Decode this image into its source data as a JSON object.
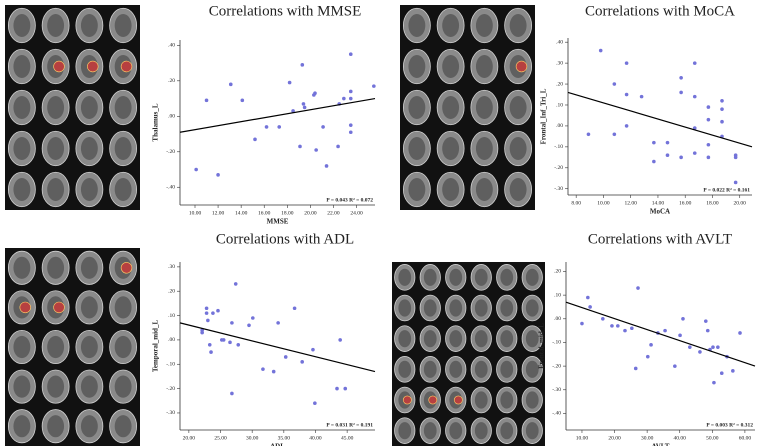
{
  "chart_data": [
    {
      "type": "scatter",
      "title": "Correlations with MMSE",
      "x_label": "MMSE",
      "y_label": "Thalamus_L",
      "annotation": "P = 0.043   R² = 0.072",
      "color": "#7373d9",
      "x": [
        10.1,
        11.0,
        12.0,
        13.1,
        14.1,
        15.2,
        16.2,
        17.3,
        18.5,
        18.2,
        19.1,
        19.3,
        19.4,
        19.5,
        20.3,
        20.4,
        20.5,
        21.1,
        21.4,
        22.4,
        22.5,
        22.9,
        23.5,
        23.5,
        23.5,
        23.5,
        23.5,
        25.5
      ],
      "values": [
        -0.3,
        0.09,
        -0.33,
        0.18,
        0.09,
        -0.13,
        -0.06,
        -0.06,
        0.03,
        0.19,
        -0.17,
        0.29,
        0.07,
        0.05,
        0.12,
        0.13,
        -0.19,
        -0.06,
        -0.28,
        -0.17,
        0.07,
        0.1,
        0.1,
        0.14,
        -0.09,
        -0.05,
        0.35,
        0.17
      ],
      "fit": {
        "x": [
          8.7,
          25.6
        ],
        "y": [
          -0.09,
          0.1
        ]
      },
      "xlim": [
        8.7,
        25.6
      ],
      "ylim": [
        -0.5,
        0.43
      ],
      "xticks": [
        {
          "value": 10,
          "label": "10.00"
        },
        {
          "value": 12,
          "label": "12.00"
        },
        {
          "value": 14,
          "label": "14.00"
        },
        {
          "value": 16,
          "label": "16.00"
        },
        {
          "value": 18,
          "label": "18.00"
        },
        {
          "value": 20,
          "label": "20.00"
        },
        {
          "value": 22,
          "label": "22.00"
        },
        {
          "value": 24,
          "label": "24.00"
        }
      ],
      "yticks": [
        {
          "value": 0.4,
          "label": ".40"
        },
        {
          "value": 0.2,
          "label": ".20"
        },
        {
          "value": 0,
          "label": ".00"
        },
        {
          "value": -0.2,
          "label": "-.20"
        },
        {
          "value": -0.4,
          "label": "-.40"
        }
      ]
    },
    {
      "type": "scatter",
      "title": "Correlations with MoCA",
      "x_label": "MoCA",
      "y_label": "Frontal_Inf_Tri_L",
      "annotation": "P = 0.022   R² = 0.161",
      "color": "#7373d9",
      "x": [
        8.9,
        9.8,
        10.8,
        10.8,
        11.7,
        11.7,
        11.7,
        12.8,
        13.7,
        13.7,
        14.7,
        14.7,
        15.7,
        15.7,
        15.7,
        16.7,
        16.7,
        16.7,
        16.7,
        17.7,
        17.7,
        17.7,
        17.7,
        18.7,
        18.7,
        18.7,
        18.7,
        19.7,
        19.7,
        19.7
      ],
      "values": [
        -0.04,
        0.36,
        0.2,
        -0.04,
        0.3,
        0.15,
        0.0,
        0.14,
        -0.08,
        -0.17,
        -0.08,
        -0.14,
        0.23,
        0.16,
        -0.15,
        0.3,
        0.14,
        -0.01,
        -0.13,
        0.09,
        0.03,
        -0.09,
        -0.15,
        0.12,
        0.08,
        0.02,
        -0.05,
        -0.14,
        -0.15,
        -0.27
      ],
      "fit": {
        "x": [
          7.4,
          20.9
        ],
        "y": [
          0.16,
          -0.1
        ]
      },
      "xlim": [
        7.4,
        20.9
      ],
      "ylim": [
        -0.33,
        0.42
      ],
      "xticks": [
        {
          "value": 8,
          "label": "8.00"
        },
        {
          "value": 10,
          "label": "10.00"
        },
        {
          "value": 12,
          "label": "12.00"
        },
        {
          "value": 14,
          "label": "14.00"
        },
        {
          "value": 16,
          "label": "16.00"
        },
        {
          "value": 18,
          "label": "18.00"
        },
        {
          "value": 20,
          "label": "20.00"
        }
      ],
      "yticks": [
        {
          "value": 0.4,
          "label": ".40"
        },
        {
          "value": 0.3,
          "label": ".30"
        },
        {
          "value": 0.2,
          "label": ".20"
        },
        {
          "value": 0.1,
          "label": ".10"
        },
        {
          "value": 0,
          "label": ".00"
        },
        {
          "value": -0.1,
          "label": "-.10"
        },
        {
          "value": -0.2,
          "label": "-.20"
        },
        {
          "value": -0.3,
          "label": "-.30"
        }
      ]
    },
    {
      "type": "scatter",
      "title": "Correlations with ADL",
      "x_label": "ADL",
      "y_label": "Temporal_mid_L",
      "annotation": "P = 0.031   R² = 0.191",
      "color": "#7373d9",
      "x": [
        22.1,
        22.1,
        22.8,
        22.8,
        23.0,
        23.3,
        23.5,
        23.8,
        24.6,
        25.2,
        25.5,
        26.5,
        26.8,
        26.8,
        27.4,
        27.8,
        29.5,
        30.1,
        31.7,
        33.4,
        34.1,
        35.3,
        36.7,
        37.9,
        39.6,
        39.9,
        43.4,
        43.9,
        44.7
      ],
      "values": [
        0.04,
        0.03,
        0.13,
        0.11,
        0.08,
        -0.02,
        -0.05,
        0.11,
        0.12,
        0.0,
        0.0,
        -0.01,
        0.07,
        -0.22,
        0.23,
        -0.02,
        0.06,
        0.09,
        -0.12,
        -0.13,
        0.07,
        -0.07,
        0.13,
        -0.09,
        -0.04,
        -0.26,
        -0.2,
        0.0,
        -0.2
      ],
      "fit": {
        "x": [
          18.6,
          49.4
        ],
        "y": [
          0.07,
          -0.13
        ]
      },
      "xlim": [
        18.6,
        49.4
      ],
      "ylim": [
        -0.37,
        0.32
      ],
      "xticks": [
        {
          "value": 20,
          "label": "20.00"
        },
        {
          "value": 25,
          "label": "25.00"
        },
        {
          "value": 30,
          "label": "30.00"
        },
        {
          "value": 35,
          "label": "35.00"
        },
        {
          "value": 40,
          "label": "40.00"
        },
        {
          "value": 45,
          "label": "45.00"
        }
      ],
      "yticks": [
        {
          "value": 0.3,
          "label": ".30"
        },
        {
          "value": 0.2,
          "label": ".20"
        },
        {
          "value": 0.1,
          "label": ".10"
        },
        {
          "value": 0,
          "label": ".00"
        },
        {
          "value": -0.1,
          "label": "-.10"
        },
        {
          "value": -0.2,
          "label": "-.20"
        },
        {
          "value": -0.3,
          "label": "-.30"
        }
      ]
    },
    {
      "type": "scatter",
      "title": "Correlations with AVLT",
      "x_label": "AVLT",
      "y_label": "Frontal_mid_L",
      "annotation": "P = 0.003   R² = 0.312",
      "color": "#7373d9",
      "x": [
        10.0,
        11.8,
        12.5,
        16.4,
        19.2,
        21.0,
        23.2,
        25.3,
        26.5,
        27.2,
        30.2,
        31.2,
        33.3,
        35.5,
        38.5,
        40.1,
        41.0,
        43.1,
        46.2,
        48.0,
        48.6,
        49.3,
        50.2,
        50.5,
        51.7,
        52.9,
        54.5,
        56.3,
        58.5
      ],
      "values": [
        -0.02,
        0.09,
        0.05,
        0.0,
        -0.03,
        -0.03,
        -0.05,
        -0.04,
        -0.21,
        0.13,
        -0.16,
        -0.11,
        -0.06,
        -0.05,
        -0.2,
        -0.07,
        0.0,
        -0.12,
        -0.14,
        -0.01,
        -0.05,
        -0.13,
        -0.12,
        -0.27,
        -0.12,
        -0.23,
        -0.16,
        -0.22,
        -0.06
      ],
      "fit": {
        "x": [
          5.1,
          63.1
        ],
        "y": [
          0.07,
          -0.2
        ]
      },
      "xlim": [
        5.1,
        63.1
      ],
      "ylim": [
        -0.47,
        0.24
      ],
      "xticks": [
        {
          "value": 10,
          "label": "10.00"
        },
        {
          "value": 20,
          "label": "20.00"
        },
        {
          "value": 30,
          "label": "30.00"
        },
        {
          "value": 40,
          "label": "40.00"
        },
        {
          "value": 50,
          "label": "50.00"
        },
        {
          "value": 60,
          "label": "60.00"
        }
      ],
      "yticks": [
        {
          "value": 0.2,
          "label": ".20"
        },
        {
          "value": 0.1,
          "label": ".10"
        },
        {
          "value": 0,
          "label": ".00"
        },
        {
          "value": -0.1,
          "label": "-.10"
        },
        {
          "value": -0.2,
          "label": "-.20"
        },
        {
          "value": -0.3,
          "label": "-.30"
        },
        {
          "value": -0.4,
          "label": "-.40"
        }
      ]
    }
  ]
}
